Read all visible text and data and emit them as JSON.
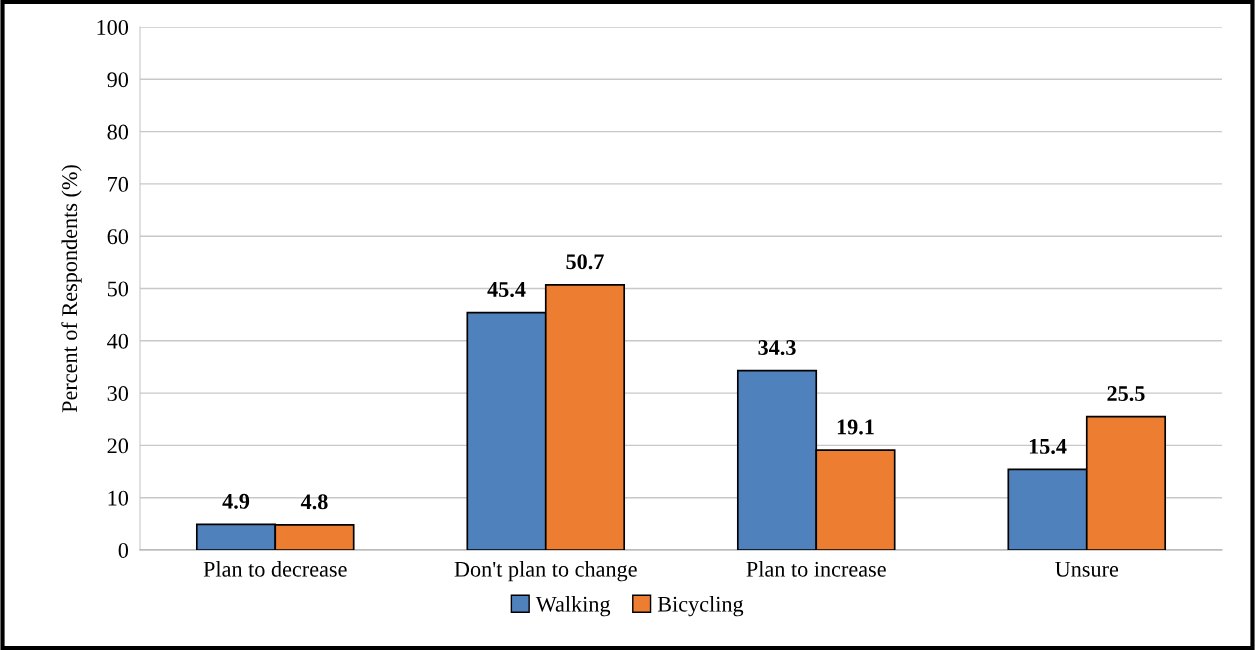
{
  "chart_data": {
    "type": "bar",
    "ylabel": "Percent of Respondents (%)",
    "categories": [
      "Plan to decrease",
      "Don't plan to change",
      "Plan to increase",
      "Unsure"
    ],
    "series": [
      {
        "name": "Walking",
        "color": "#4f81bd",
        "values": [
          4.9,
          45.4,
          34.3,
          15.4
        ]
      },
      {
        "name": "Bicycling",
        "color": "#ed7d31",
        "values": [
          4.8,
          50.7,
          19.1,
          25.5
        ]
      }
    ],
    "ylim": [
      0,
      100
    ],
    "yticks": [
      0,
      10,
      20,
      30,
      40,
      50,
      60,
      70,
      80,
      90,
      100
    ],
    "grid": "y",
    "legend": "bottom",
    "data_labels": true
  }
}
